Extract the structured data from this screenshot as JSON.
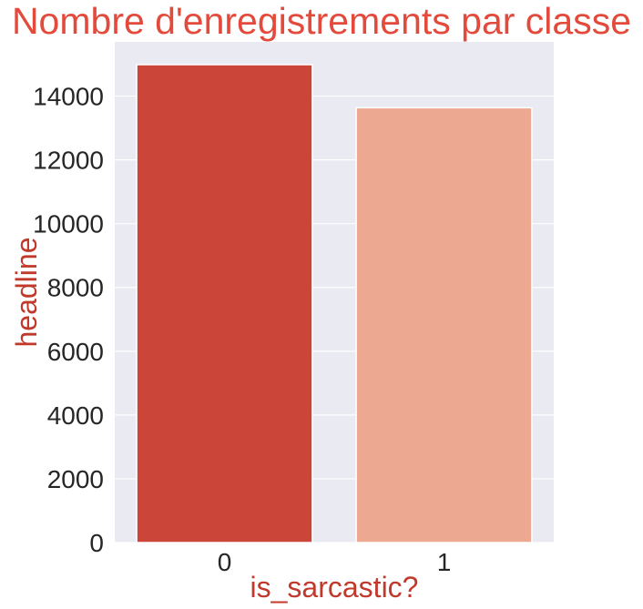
{
  "chart_data": {
    "type": "bar",
    "title": "Nombre d'enregistrements par classe",
    "xlabel": "is_sarcastic?",
    "ylabel": "headline",
    "categories": [
      "0",
      "1"
    ],
    "values": [
      14985,
      13634
    ],
    "bar_colors": [
      "#cb4539",
      "#eca890"
    ],
    "ylim": [
      0,
      15700
    ],
    "yticks": [
      0,
      2000,
      4000,
      6000,
      8000,
      10000,
      12000,
      14000
    ],
    "grid": true,
    "legend": "none"
  },
  "colors": {
    "title": "#e34a3c",
    "axis_label": "#c0392b",
    "plot_background": "#eaeaf2",
    "grid": "#ffffff",
    "tick_text": "#262626"
  }
}
